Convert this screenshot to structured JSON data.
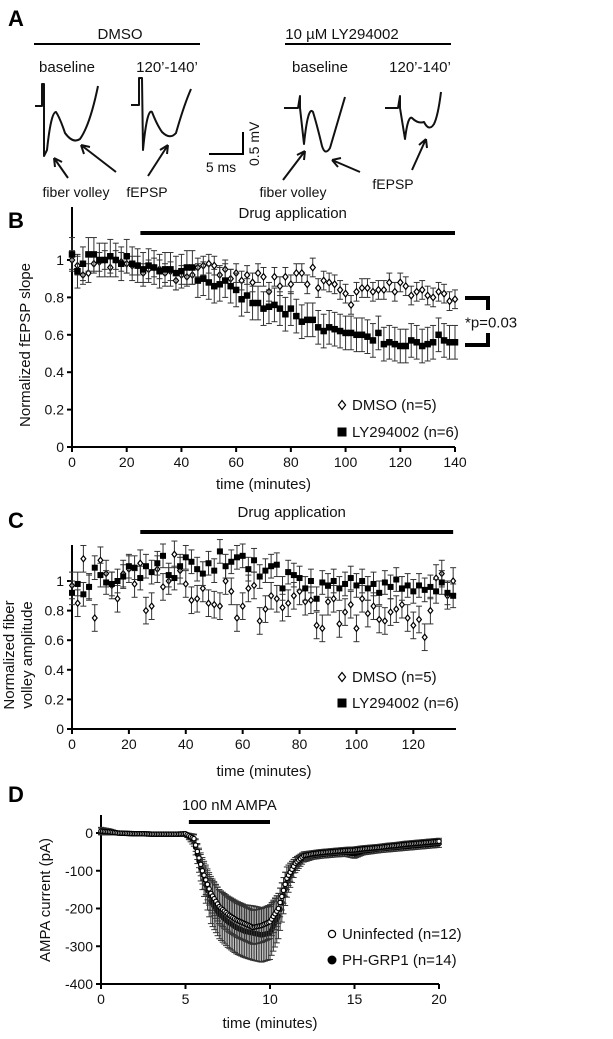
{
  "panel_a": {
    "label": "A",
    "groups": [
      {
        "title": "DMSO",
        "conditions": [
          "baseline",
          "120’-140’"
        ],
        "annotations": [
          "fiber volley",
          "fEPSP"
        ]
      },
      {
        "title": "10 µM LY294002",
        "conditions": [
          "baseline",
          "120’-140’"
        ],
        "annotations": [
          "fiber volley",
          "fEPSP"
        ]
      }
    ],
    "scale_bar": {
      "time": "5 ms",
      "voltage": "0.5 mV"
    }
  },
  "chart_data": [
    {
      "panel": "B",
      "type": "scatter",
      "ylabel": [
        "Normalized fEPSP slope"
      ],
      "xlabel": "time (minutes)",
      "xlim": [
        0,
        140
      ],
      "ylim": [
        0,
        1.1
      ],
      "xticks": [
        0,
        20,
        40,
        60,
        80,
        100,
        120,
        140
      ],
      "yticks": [
        0,
        0.2,
        0.4,
        0.6,
        0.8,
        1
      ],
      "bar": {
        "label": "Drug application",
        "from": 25,
        "to": 140
      },
      "annotation": "*p=0.03",
      "x_first": 0,
      "x_last": 140,
      "series": [
        {
          "name": "DMSO (n=5)",
          "marker": "diamond-open",
          "err": 0.05,
          "values": [
            1.0,
            0.97,
            0.92,
            0.93,
            0.98,
            0.99,
            1.0,
            0.96,
            1.0,
            0.99,
            0.98,
            0.97,
            0.97,
            0.93,
            0.95,
            0.96,
            0.95,
            0.93,
            0.94,
            0.89,
            0.92,
            0.91,
            0.92,
            0.96,
            0.97,
            0.98,
            0.97,
            0.92,
            0.95,
            0.9,
            0.93,
            0.89,
            0.92,
            0.88,
            0.93,
            0.91,
            0.83,
            0.91,
            0.86,
            0.91,
            0.87,
            0.93,
            0.93,
            0.87,
            0.96,
            0.85,
            0.89,
            0.88,
            0.87,
            0.84,
            0.82,
            0.76,
            0.83,
            0.85,
            0.85,
            0.83,
            0.84,
            0.84,
            0.88,
            0.83,
            0.88,
            0.86,
            0.81,
            0.83,
            0.84,
            0.81,
            0.8,
            0.83,
            0.82,
            0.78,
            0.79
          ]
        },
        {
          "name": "LY294002 (n=6)",
          "marker": "square-filled",
          "err": 0.09,
          "values": [
            1.03,
            0.94,
            0.98,
            1.03,
            1.03,
            1.0,
            1.0,
            1.02,
            1.0,
            0.98,
            1.02,
            0.98,
            0.97,
            0.95,
            0.97,
            0.96,
            0.94,
            0.95,
            0.95,
            0.93,
            0.94,
            0.96,
            0.96,
            0.89,
            0.9,
            0.88,
            0.86,
            0.87,
            0.89,
            0.86,
            0.84,
            0.79,
            0.81,
            0.77,
            0.77,
            0.74,
            0.75,
            0.76,
            0.74,
            0.71,
            0.74,
            0.7,
            0.67,
            0.68,
            0.68,
            0.64,
            0.62,
            0.64,
            0.63,
            0.62,
            0.61,
            0.61,
            0.6,
            0.6,
            0.59,
            0.57,
            0.61,
            0.55,
            0.56,
            0.55,
            0.54,
            0.54,
            0.57,
            0.56,
            0.54,
            0.55,
            0.56,
            0.6,
            0.57,
            0.56,
            0.56
          ]
        }
      ]
    },
    {
      "panel": "C",
      "type": "scatter",
      "ylabel": [
        "Normalized fiber",
        "volley amplitude"
      ],
      "xlabel": "time (minutes)",
      "xlim": [
        0,
        135
      ],
      "ylim": [
        0,
        1.25
      ],
      "xticks": [
        0,
        20,
        40,
        60,
        80,
        100,
        120
      ],
      "yticks": [
        0,
        0.2,
        0.4,
        0.6,
        0.8,
        1
      ],
      "bar": {
        "label": "Drug application",
        "from": 24,
        "to": 134
      },
      "x_first": 0,
      "x_last": 134,
      "series": [
        {
          "name": "DMSO (n=5)",
          "marker": "diamond-open",
          "err": 0.09,
          "values": [
            0.97,
            0.85,
            1.15,
            0.96,
            0.75,
            1.14,
            1.05,
            0.97,
            0.88,
            1.05,
            1.08,
            0.98,
            1.12,
            0.8,
            0.83,
            1.08,
            0.96,
            1.0,
            1.18,
            1.07,
            0.98,
            0.87,
            0.88,
            0.95,
            0.85,
            0.84,
            0.83,
            1.0,
            0.93,
            0.75,
            0.83,
            0.95,
            0.97,
            0.73,
            0.81,
            0.9,
            0.88,
            0.82,
            0.85,
            0.9,
            0.93,
            0.86,
            0.87,
            0.7,
            0.68,
            0.86,
            0.88,
            0.71,
            0.79,
            0.84,
            0.68,
            0.88,
            0.78,
            0.83,
            0.74,
            0.73,
            0.79,
            0.81,
            0.84,
            0.75,
            0.7,
            0.74,
            0.62,
            0.8,
            1.02,
            1.05,
            0.9,
            1.0
          ]
        },
        {
          "name": "LY294002 (n=6)",
          "marker": "square-filled",
          "err": 0.08,
          "values": [
            0.92,
            0.98,
            0.91,
            0.96,
            1.09,
            1.04,
            0.99,
            0.98,
            1.0,
            1.03,
            1.1,
            1.09,
            1.02,
            1.1,
            1.06,
            1.12,
            1.17,
            1.04,
            1.02,
            1.1,
            1.16,
            1.13,
            1.08,
            1.05,
            1.12,
            1.07,
            1.2,
            1.1,
            1.13,
            1.16,
            1.17,
            1.08,
            1.14,
            1.03,
            1.07,
            1.1,
            1.11,
            0.95,
            1.06,
            1.04,
            1.02,
            0.95,
            1.0,
            0.88,
            0.99,
            0.97,
            1.0,
            0.95,
            0.98,
            1.02,
            0.97,
            1.0,
            0.95,
            0.98,
            0.92,
            0.99,
            0.96,
            1.01,
            0.95,
            0.97,
            0.93,
            0.97,
            0.94,
            0.96,
            0.93,
            0.99,
            0.92,
            0.9
          ]
        }
      ]
    },
    {
      "panel": "D",
      "type": "scatter",
      "ylabel": [
        "AMPA current (pA)"
      ],
      "xlabel": "time (minutes)",
      "xlim": [
        0,
        20
      ],
      "ylim": [
        -400,
        40
      ],
      "xticks": [
        0,
        5,
        10,
        15,
        20
      ],
      "yticks": [
        -400,
        -300,
        -200,
        -100,
        0
      ],
      "bar": {
        "label": "100 nM AMPA",
        "from": 5.2,
        "to": 10
      },
      "x_first": 0,
      "x_last": 20,
      "series": [
        {
          "name": "PH-GRP1 (n=14)",
          "marker": "circle-filled",
          "values": [
            5,
            3,
            0,
            -1,
            -2,
            -2,
            -3,
            -3,
            -3,
            -3,
            -3,
            -20,
            -110,
            -180,
            -215,
            -235,
            -250,
            -260,
            -265,
            -270,
            -265,
            -220,
            -130,
            -85,
            -65,
            -60,
            -57,
            -55,
            -53,
            -52,
            -55,
            -48,
            -45,
            -42,
            -40,
            -38,
            -36,
            -34,
            -32,
            -30,
            -28
          ],
          "err": [
            10,
            8,
            4,
            3,
            3,
            3,
            3,
            3,
            3,
            3,
            3,
            15,
            40,
            60,
            65,
            68,
            70,
            70,
            72,
            72,
            70,
            60,
            40,
            20,
            12,
            10,
            10,
            10,
            10,
            10,
            12,
            10,
            10,
            10,
            10,
            10,
            10,
            10,
            10,
            10,
            10
          ]
        },
        {
          "name": "Uninfected (n=12)",
          "marker": "circle-open",
          "values": [
            5,
            3,
            0,
            -1,
            -2,
            -2,
            -3,
            -3,
            -3,
            -3,
            -2,
            -15,
            -100,
            -160,
            -195,
            -215,
            -230,
            -240,
            -250,
            -245,
            -235,
            -200,
            -120,
            -80,
            -60,
            -55,
            -52,
            -50,
            -48,
            -46,
            -45,
            -42,
            -40,
            -38,
            -35,
            -33,
            -30,
            -28,
            -26,
            -24,
            -22
          ],
          "err": [
            8,
            6,
            4,
            3,
            3,
            3,
            3,
            3,
            3,
            3,
            3,
            12,
            35,
            45,
            45,
            45,
            45,
            45,
            45,
            45,
            45,
            40,
            30,
            15,
            10,
            8,
            8,
            8,
            8,
            8,
            8,
            8,
            8,
            8,
            8,
            8,
            8,
            8,
            8,
            8,
            8
          ]
        }
      ]
    }
  ]
}
